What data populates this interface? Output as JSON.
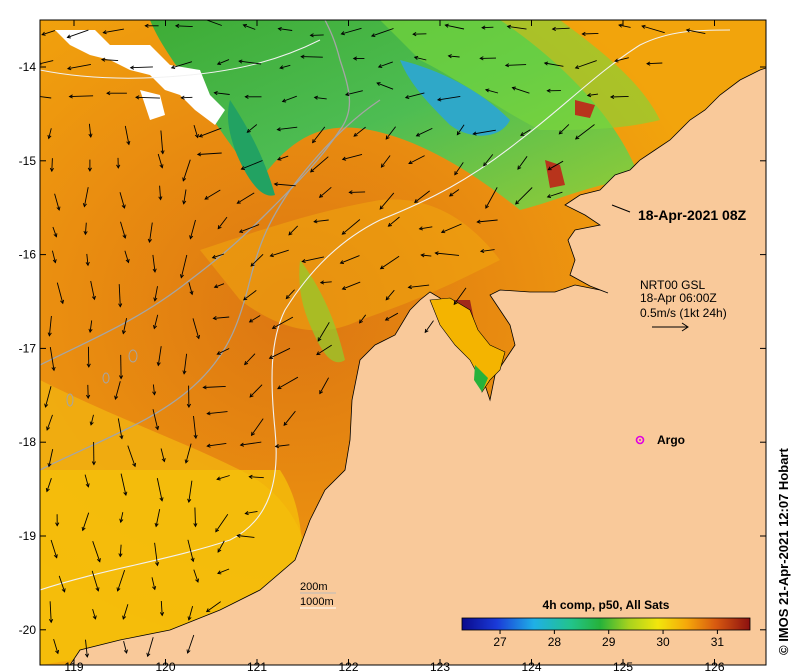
{
  "map": {
    "date_label": "18-Apr-2021 08Z",
    "current_legend": {
      "line1": "NRT00 GSL",
      "line2": "18-Apr 06:00Z",
      "line3": "0.5m/s (1kt 24h)"
    },
    "argo_label": "Argo",
    "bathymetry_labels": [
      "200m",
      "1000m"
    ],
    "colorbar": {
      "title": "4h comp, p50, All Sats",
      "ticks": [
        "27",
        "28",
        "29",
        "30",
        "31"
      ]
    },
    "credit": "© IMOS 21-Apr-2021 12:07 Hobart",
    "x_ticks": [
      "119",
      "120",
      "121",
      "122",
      "123",
      "124",
      "125",
      "126"
    ],
    "y_ticks": [
      "-14",
      "-15",
      "-16",
      "-17",
      "-18",
      "-19",
      "-20"
    ],
    "colors": {
      "land": "#f9c99a",
      "warm": "#e07b10",
      "mid": "#f4b400",
      "cool": "#21b14a",
      "cold": "#2aa5c4",
      "hot": "#a0281a",
      "argo": "#e000e0"
    }
  }
}
